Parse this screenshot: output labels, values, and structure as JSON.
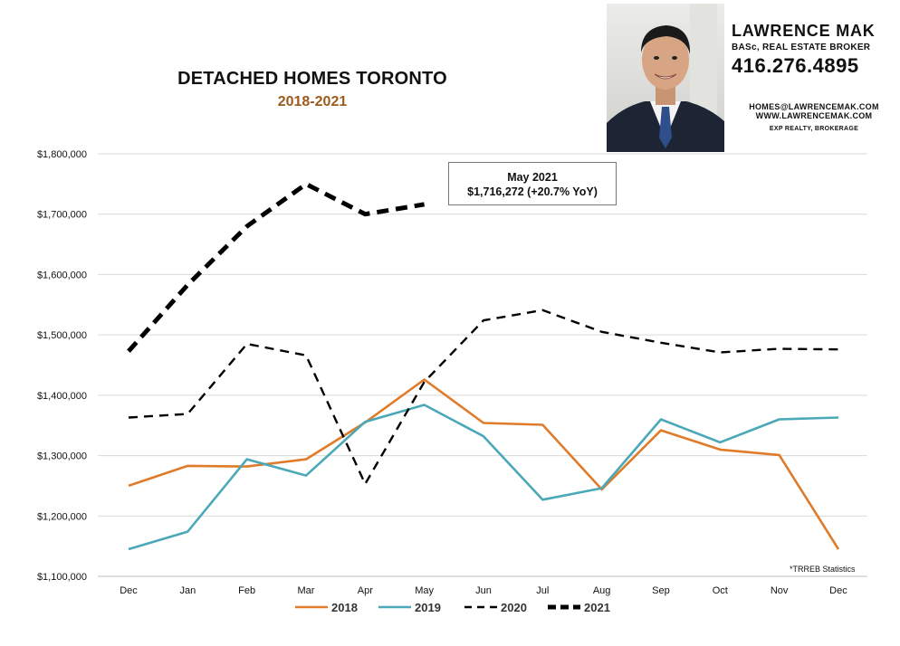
{
  "header": {
    "title": "DETACHED HOMES TORONTO",
    "subtitle": "2018-2021"
  },
  "annotation": {
    "line1": "May 2021",
    "line2": "$1,716,272 (+20.7%  YoY)"
  },
  "branding": {
    "name": "LAWRENCE MAK",
    "credentials": "BASc, REAL ESTATE BROKER",
    "phone": "416.276.4895",
    "email": "HOMES@LAWRENCEMAK.COM",
    "website": "WWW.LAWRENCEMAK.COM",
    "brokerage": "EXP REALTY, BROKERAGE"
  },
  "source_note": "*TRREB Statistics",
  "chart_data": {
    "type": "line",
    "title": "DETACHED HOMES TORONTO",
    "subtitle": "2018-2021",
    "categories": [
      "Dec",
      "Jan",
      "Feb",
      "Mar",
      "Apr",
      "May",
      "Jun",
      "Jul",
      "Aug",
      "Sep",
      "Oct",
      "Nov",
      "Dec"
    ],
    "ylim": [
      1100000,
      1800000
    ],
    "y_ticks": [
      1100000,
      1200000,
      1300000,
      1400000,
      1500000,
      1600000,
      1700000,
      1800000
    ],
    "y_tick_labels": [
      "$1,100,000",
      "$1,200,000",
      "$1,300,000",
      "$1,400,000",
      "$1,500,000",
      "$1,600,000",
      "$1,700,000",
      "$1,800,000"
    ],
    "grid": true,
    "legend_position": "bottom",
    "series": [
      {
        "name": "2018",
        "color": "#e07b2a",
        "style": "solid",
        "values": [
          1250000,
          1283000,
          1282000,
          1294000,
          1355000,
          1426000,
          1354000,
          1351000,
          1244000,
          1342000,
          1310000,
          1301000,
          1145000
        ]
      },
      {
        "name": "2019",
        "color": "#4aa8b8",
        "style": "solid",
        "values": [
          1145000,
          1174000,
          1294000,
          1267000,
          1356000,
          1384000,
          1332000,
          1227000,
          1246000,
          1360000,
          1322000,
          1360000,
          1363000
        ]
      },
      {
        "name": "2020",
        "color": "#000000",
        "style": "dashed",
        "values": [
          1363000,
          1369000,
          1485000,
          1466000,
          1253000,
          1422000,
          1524000,
          1541000,
          1505000,
          1487000,
          1471000,
          1477000,
          1476000
        ]
      },
      {
        "name": "2021",
        "color": "#000000",
        "style": "bold-dashed",
        "values": [
          1473000,
          1583000,
          1680000,
          1750000,
          1700000,
          1716272,
          null,
          null,
          null,
          null,
          null,
          null,
          null
        ]
      }
    ]
  }
}
